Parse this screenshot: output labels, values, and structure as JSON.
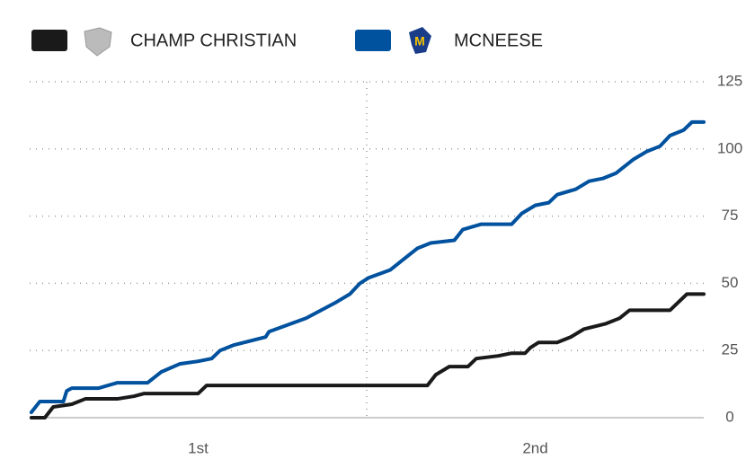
{
  "chart_data": {
    "type": "line",
    "periods": [
      "1st",
      "2nd"
    ],
    "xlim": [
      0,
      40
    ],
    "ylim": [
      0,
      125
    ],
    "yticks": [
      0,
      25,
      50,
      75,
      100,
      125
    ],
    "grid": true,
    "series": [
      {
        "name": "CHAMP CHRISTIAN",
        "color": "#1a1a1a",
        "x": [
          0.1,
          0.9,
          1.4,
          2.5,
          3.3,
          5.2,
          6.2,
          6.8,
          10.0,
          10.5,
          23.6,
          24.1,
          24.9,
          26.0,
          26.5,
          27.8,
          28.6,
          29.4,
          29.7,
          30.2,
          31.3,
          32.1,
          32.9,
          34.2,
          35.0,
          35.6,
          38.0,
          38.5,
          39.0,
          40
        ],
        "values": [
          0,
          0,
          4,
          5,
          7,
          7,
          8,
          9,
          9,
          12,
          12,
          16,
          19,
          19,
          22,
          23,
          24,
          24,
          26,
          28,
          28,
          30,
          33,
          35,
          37,
          40,
          40,
          43,
          46,
          46
        ]
      },
      {
        "name": "MCNEESE",
        "color": "#00519e",
        "x": [
          0.1,
          0.6,
          2.0,
          2.2,
          2.5,
          4.1,
          5.2,
          7.0,
          7.8,
          8.9,
          10.0,
          10.8,
          11.3,
          12.1,
          14.0,
          14.2,
          16.4,
          18.2,
          19.0,
          19.6,
          20.1,
          21.4,
          22.2,
          23.0,
          23.8,
          25.2,
          25.7,
          26.8,
          28.6,
          29.2,
          30.0,
          30.8,
          31.3,
          32.4,
          33.2,
          34.0,
          34.8,
          35.8,
          36.6,
          37.4,
          38.0,
          38.8,
          39.3,
          40
        ],
        "values": [
          2,
          6,
          6,
          10,
          11,
          11,
          13,
          13,
          17,
          20,
          21,
          22,
          25,
          27,
          30,
          32,
          37,
          43,
          46,
          50,
          52,
          55,
          59,
          63,
          65,
          66,
          70,
          72,
          72,
          76,
          79,
          80,
          83,
          85,
          88,
          89,
          91,
          96,
          99,
          101,
          105,
          107,
          110,
          110
        ]
      }
    ]
  }
}
